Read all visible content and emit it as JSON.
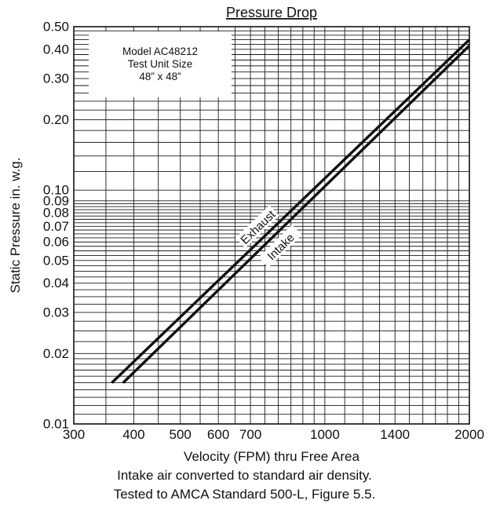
{
  "chart_data": {
    "type": "line",
    "title": "Pressure Drop",
    "xlabel": "Velocity (FPM) thru Free Area",
    "ylabel": "Static Pressure in. w.g.",
    "x_scale": "log",
    "y_scale": "log",
    "xlim": [
      300,
      2000
    ],
    "ylim": [
      0.01,
      0.5
    ],
    "grid": true,
    "x_ticks": [
      300,
      400,
      500,
      600,
      700,
      1000,
      1400,
      2000
    ],
    "y_ticks": [
      0.01,
      0.02,
      0.03,
      0.04,
      0.05,
      0.06,
      0.07,
      0.08,
      0.09,
      0.1,
      0.2,
      0.3,
      0.4,
      0.5
    ],
    "x_tick_labels": [
      "300",
      "400",
      "500",
      "600",
      "700",
      "1000",
      "1400",
      "2000"
    ],
    "y_tick_labels": [
      "0.01",
      "0.02",
      "0.03",
      "0.04",
      "0.05",
      "0.06",
      "0.07",
      "0.08",
      "0.09",
      "0.10",
      "0.20",
      "0.30",
      "0.40",
      "0.50"
    ],
    "series": [
      {
        "name": "Exhaust",
        "x": [
          360,
          2000
        ],
        "y": [
          0.015,
          0.44
        ]
      },
      {
        "name": "Intake",
        "x": [
          380,
          2000
        ],
        "y": [
          0.015,
          0.415
        ]
      }
    ],
    "annotation": [
      "Model AC48212",
      "Test Unit Size",
      "48” x 48”"
    ]
  },
  "footnotes": [
    "Intake air converted to standard air density.",
    "Tested to AMCA Standard 500-L, Figure 5.5."
  ],
  "colors": {
    "line": "#111111",
    "grid": "#1a1a1a",
    "background": "#ffffff"
  }
}
